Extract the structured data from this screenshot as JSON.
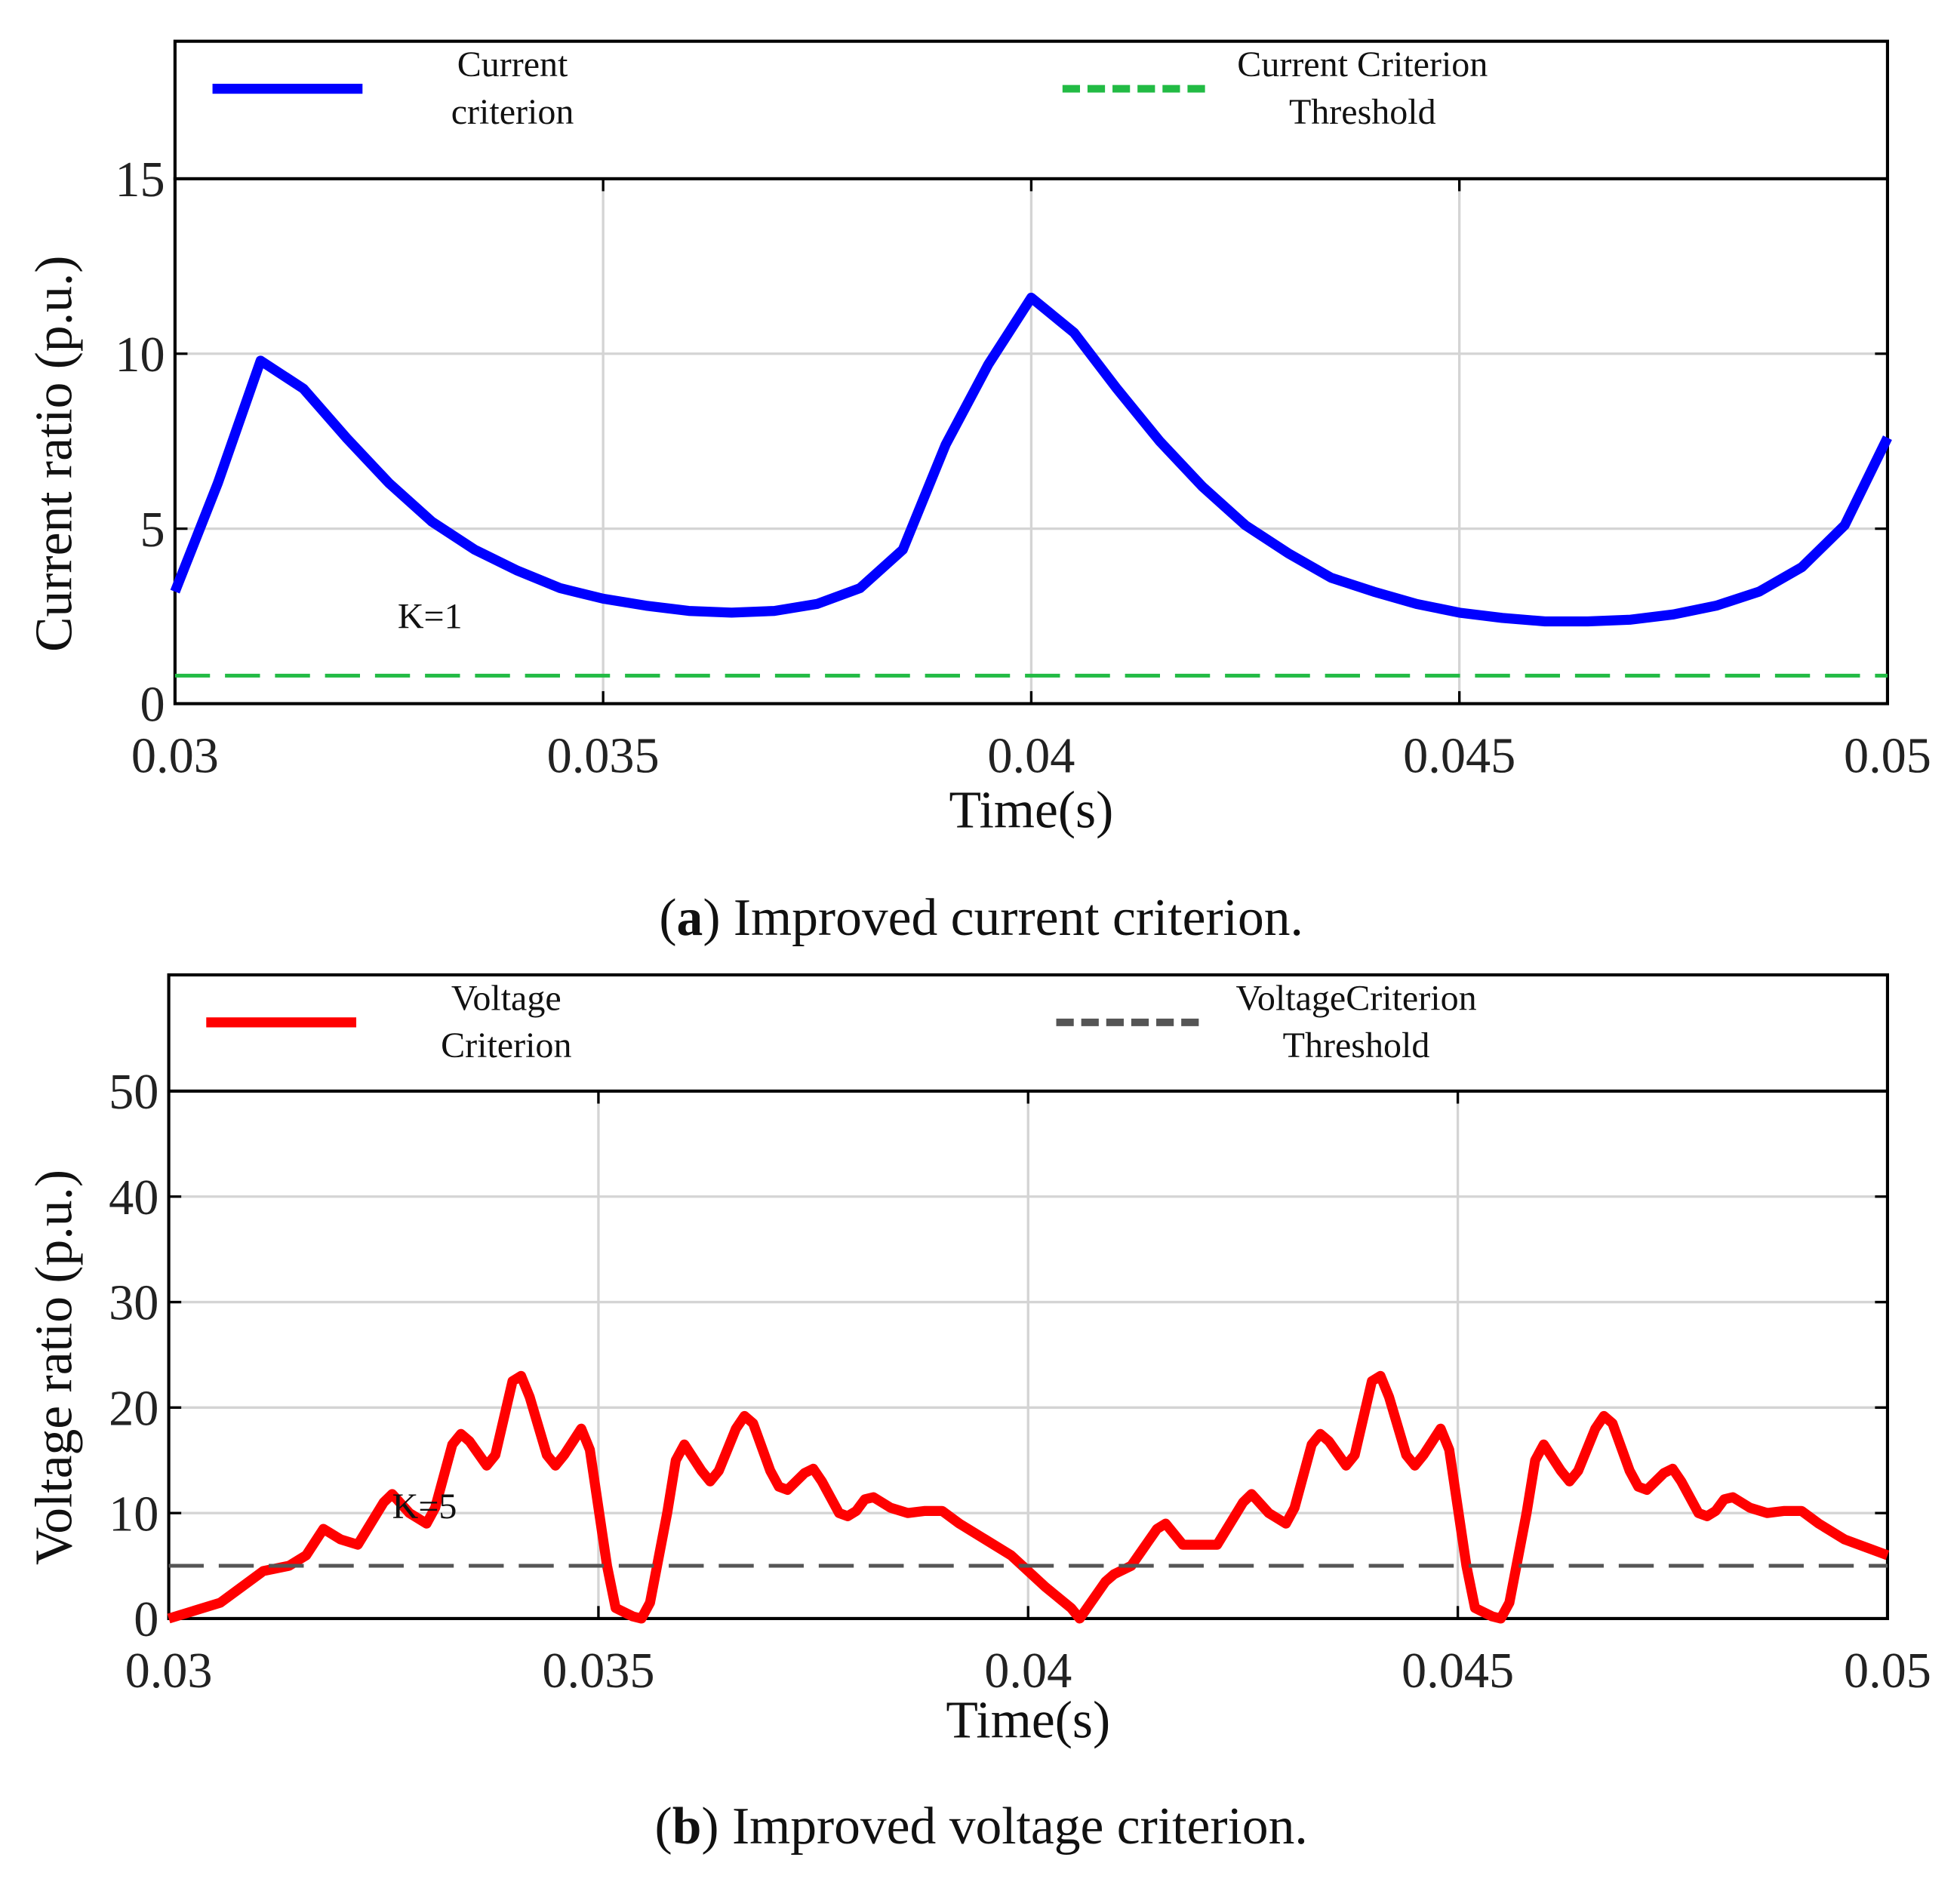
{
  "chart_data": [
    {
      "type": "line",
      "xlabel": "Time(s)",
      "ylabel": "Current ratio (p.u.)",
      "xlim": [
        0.03,
        0.05
      ],
      "xticks": [
        0.03,
        0.035,
        0.04,
        0.045,
        0.05
      ],
      "ylim": [
        0,
        15
      ],
      "yticks": [
        0,
        5,
        10,
        15
      ],
      "grid": true,
      "series": [
        {
          "name": "Current criterion",
          "color": "#0000ff",
          "style": "solid",
          "x": [
            0.03,
            0.0305,
            0.031,
            0.0315,
            0.032,
            0.0325,
            0.033,
            0.0335,
            0.034,
            0.0345,
            0.035,
            0.0355,
            0.036,
            0.0365,
            0.037,
            0.0375,
            0.038,
            0.0385,
            0.039,
            0.0395,
            0.04,
            0.0405,
            0.041,
            0.0415,
            0.042,
            0.0425,
            0.043,
            0.0435,
            0.044,
            0.0445,
            0.045,
            0.0455,
            0.046,
            0.0465,
            0.047,
            0.0475,
            0.048,
            0.0485,
            0.049,
            0.0495,
            0.05
          ],
          "values": [
            3.2,
            6.3,
            9.8,
            9.0,
            7.6,
            6.3,
            5.2,
            4.4,
            3.8,
            3.3,
            3.0,
            2.8,
            2.65,
            2.6,
            2.65,
            2.85,
            3.3,
            4.4,
            7.4,
            9.7,
            11.6,
            10.6,
            9.0,
            7.5,
            6.2,
            5.1,
            4.3,
            3.6,
            3.2,
            2.85,
            2.6,
            2.45,
            2.35,
            2.35,
            2.4,
            2.55,
            2.8,
            3.2,
            3.9,
            5.1,
            7.6
          ]
        },
        {
          "name": "Current Criterion Threshold",
          "color": "#22bb44",
          "style": "dashed",
          "x": [
            0.03,
            0.05
          ],
          "values": [
            0.8,
            0.8
          ]
        }
      ],
      "annotation": {
        "text": "K=1",
        "color": "#9bbb59"
      },
      "caption_parts": [
        "(",
        "a",
        ") Improved current criterion."
      ]
    },
    {
      "type": "line",
      "xlabel": "Time(s)",
      "ylabel": "Voltage ratio (p.u.)",
      "xlim": [
        0.03,
        0.05
      ],
      "xticks": [
        0.03,
        0.035,
        0.04,
        0.045,
        0.05
      ],
      "ylim": [
        0,
        50
      ],
      "yticks": [
        0,
        10,
        20,
        30,
        40,
        50
      ],
      "grid": true,
      "series": [
        {
          "name": "Voltage Criterion",
          "color": "#ff0000",
          "style": "solid",
          "x": [
            0.03,
            0.0306,
            0.0311,
            0.0314,
            0.0316,
            0.0318,
            0.032,
            0.0322,
            0.0325,
            0.0326,
            0.0328,
            0.033,
            0.0331,
            0.0333,
            0.0334,
            0.0335,
            0.0337,
            0.0338,
            0.034,
            0.0341,
            0.0342,
            0.0344,
            0.0345,
            0.0346,
            0.0348,
            0.0349,
            0.0351,
            0.0352,
            0.0354,
            0.0355,
            0.0356,
            0.0358,
            0.0359,
            0.036,
            0.0362,
            0.0363,
            0.0364,
            0.0366,
            0.0367,
            0.0368,
            0.037,
            0.0371,
            0.0372,
            0.0374,
            0.0375,
            0.0376,
            0.0378,
            0.0379,
            0.038,
            0.0381,
            0.0382,
            0.0384,
            0.0386,
            0.0388,
            0.039,
            0.0392,
            0.0395,
            0.0398,
            0.04,
            0.0402,
            0.0405,
            0.0406,
            0.0409,
            0.041,
            0.0412,
            0.0415,
            0.0416,
            0.0418,
            0.0422,
            0.0425,
            0.0426,
            0.0428,
            0.043,
            0.0431,
            0.0433,
            0.0434,
            0.0435,
            0.0437,
            0.0438,
            0.044,
            0.0441,
            0.0442,
            0.0444,
            0.0445,
            0.0446,
            0.0448,
            0.0449,
            0.0451,
            0.0452,
            0.0454,
            0.0455,
            0.0456,
            0.0458,
            0.0459,
            0.046,
            0.0462,
            0.0463,
            0.0464,
            0.0466,
            0.0467,
            0.0468,
            0.047,
            0.0471,
            0.0472,
            0.0474,
            0.0475,
            0.0476,
            0.0478,
            0.0479,
            0.048,
            0.0481,
            0.0482,
            0.0484,
            0.0486,
            0.0488,
            0.049,
            0.0492,
            0.0495,
            0.05
          ],
          "values": [
            0,
            1.5,
            4.5,
            5,
            6,
            8.5,
            7.5,
            7,
            11,
            11.8,
            10,
            9,
            10.5,
            16.5,
            17.5,
            16.8,
            14.5,
            15.5,
            22.5,
            23,
            21,
            15.5,
            14.5,
            15.5,
            18,
            16,
            5,
            1,
            0.2,
            0,
            1.5,
            10,
            15,
            16.5,
            14,
            13,
            14,
            18,
            19.2,
            18.5,
            14,
            12.5,
            12.2,
            13.8,
            14.2,
            13,
            10,
            9.7,
            10.2,
            11.3,
            11.5,
            10.5,
            10,
            10.2,
            10.2,
            9,
            7.5,
            6,
            4.5,
            3,
            1,
            0,
            3.5,
            4.2,
            5,
            8.5,
            9,
            7,
            7,
            11,
            11.8,
            10,
            9,
            10.5,
            16.5,
            17.5,
            16.8,
            14.5,
            15.5,
            22.5,
            23,
            21,
            15.5,
            14.5,
            15.5,
            18,
            16,
            5,
            1,
            0.2,
            0,
            1.5,
            10,
            15,
            16.5,
            14,
            13,
            14,
            18,
            19.2,
            18.5,
            14,
            12.5,
            12.2,
            13.8,
            14.2,
            13,
            10,
            9.7,
            10.2,
            11.3,
            11.5,
            10.5,
            10,
            10.2,
            10.2,
            9,
            7.5,
            6
          ]
        },
        {
          "name": "VoltageCriterion Threshold",
          "color": "#555555",
          "style": "dashed",
          "x": [
            0.03,
            0.05
          ],
          "values": [
            5,
            5
          ]
        }
      ],
      "annotation": {
        "text": "K=5",
        "color": "#111111"
      },
      "caption_parts": [
        "(",
        "b",
        ") Improved voltage criterion."
      ]
    }
  ]
}
